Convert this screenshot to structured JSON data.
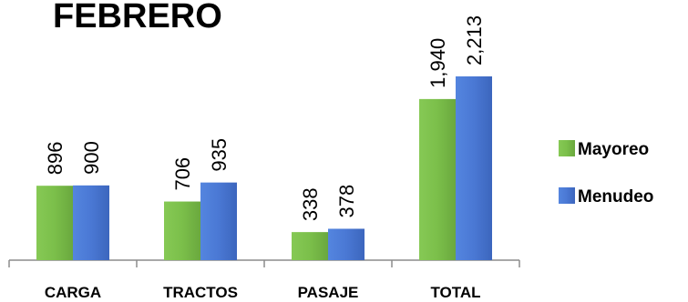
{
  "chart_data": {
    "type": "bar",
    "title": "FEBRERO",
    "categories": [
      "CARGA",
      "TRACTOS",
      "PASAJE",
      "TOTAL"
    ],
    "series": [
      {
        "name": "Mayoreo",
        "values": [
          896,
          706,
          338,
          1940
        ],
        "labels": [
          "896",
          "706",
          "338",
          "1,940"
        ],
        "color": "#7bbf4a"
      },
      {
        "name": "Menudeo",
        "values": [
          900,
          935,
          378,
          2213
        ],
        "labels": [
          "900",
          "935",
          "378",
          "2,213"
        ],
        "color": "#4a78d4"
      }
    ],
    "ylim": [
      0,
      2400
    ],
    "grid": false,
    "legend_position": "right"
  }
}
